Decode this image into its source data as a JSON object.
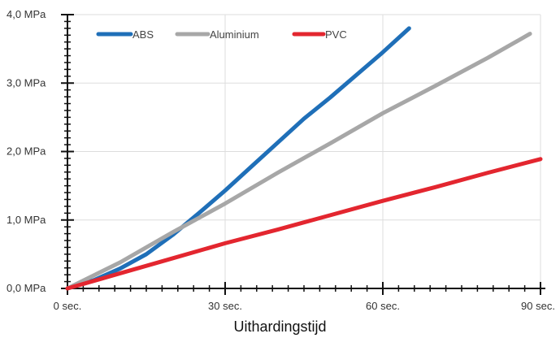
{
  "chart_data": {
    "type": "line",
    "title": "",
    "xlabel": "Uithardingstijd",
    "ylabel": "",
    "xlim": [
      0,
      90
    ],
    "ylim": [
      0,
      4
    ],
    "grid": true,
    "legend_position": "top-left",
    "x_ticks": [
      {
        "value": 0,
        "label": "0 sec."
      },
      {
        "value": 30,
        "label": "30 sec."
      },
      {
        "value": 60,
        "label": "60 sec."
      },
      {
        "value": 90,
        "label": "90 sec."
      }
    ],
    "y_ticks": [
      {
        "value": 0,
        "label": "0,0 MPa"
      },
      {
        "value": 1,
        "label": "1,0 MPa"
      },
      {
        "value": 2,
        "label": "2,0 MPa"
      },
      {
        "value": 3,
        "label": "3,0 MPa"
      },
      {
        "value": 4,
        "label": "4,0 MPa"
      }
    ],
    "series": [
      {
        "name": "ABS",
        "color": "#1f6fb8",
        "x": [
          0,
          5,
          10,
          15,
          20,
          25,
          30,
          35,
          40,
          45,
          50,
          55,
          60,
          65
        ],
        "y": [
          0,
          0.12,
          0.29,
          0.5,
          0.78,
          1.1,
          1.43,
          1.78,
          2.13,
          2.48,
          2.79,
          3.12,
          3.45,
          3.8
        ]
      },
      {
        "name": "Aluminium",
        "color": "#a7a7a7",
        "x": [
          0,
          10,
          20,
          30,
          40,
          50,
          60,
          70,
          80,
          88
        ],
        "y": [
          0,
          0.38,
          0.82,
          1.24,
          1.69,
          2.12,
          2.56,
          2.96,
          3.37,
          3.72
        ]
      },
      {
        "name": "PVC",
        "color": "#e3262f",
        "x": [
          0,
          10,
          20,
          30,
          40,
          50,
          60,
          70,
          80,
          90
        ],
        "y": [
          0,
          0.22,
          0.44,
          0.66,
          0.86,
          1.07,
          1.28,
          1.48,
          1.69,
          1.89
        ]
      }
    ]
  }
}
